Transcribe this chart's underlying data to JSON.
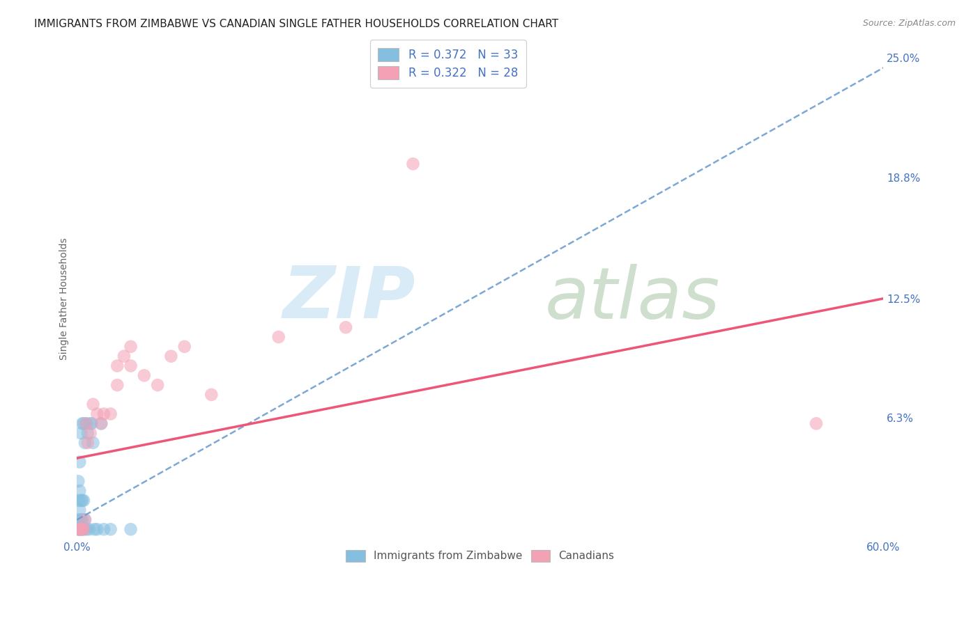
{
  "title": "IMMIGRANTS FROM ZIMBABWE VS CANADIAN SINGLE FATHER HOUSEHOLDS CORRELATION CHART",
  "source": "Source: ZipAtlas.com",
  "ylabel_label": "Single Father Households",
  "xlim": [
    0.0,
    0.6
  ],
  "ylim": [
    0.0,
    0.25
  ],
  "xtick_vals": [
    0.0,
    0.12,
    0.24,
    0.36,
    0.48,
    0.6
  ],
  "xticklabels": [
    "0.0%",
    "",
    "",
    "",
    "",
    "60.0%"
  ],
  "ytick_vals": [
    0.0,
    0.063,
    0.125,
    0.188,
    0.25
  ],
  "yticklabels_right": [
    "",
    "6.3%",
    "12.5%",
    "18.8%",
    "25.0%"
  ],
  "legend_top_labels": [
    "R = 0.372   N = 33",
    "R = 0.322   N = 28"
  ],
  "legend_bottom_labels": [
    "Immigrants from Zimbabwe",
    "Canadians"
  ],
  "blue_scatter_color": "#85bfe0",
  "pink_scatter_color": "#f4a0b5",
  "blue_line_color": "#6699cc",
  "pink_line_color": "#ee5577",
  "right_tick_color": "#4472c4",
  "bottom_tick_color": "#4472c4",
  "bg_color": "#ffffff",
  "grid_color": "#d0d0d0",
  "blue_x": [
    0.001,
    0.001,
    0.001,
    0.001,
    0.002,
    0.002,
    0.002,
    0.002,
    0.003,
    0.003,
    0.003,
    0.003,
    0.004,
    0.004,
    0.004,
    0.005,
    0.005,
    0.005,
    0.006,
    0.006,
    0.007,
    0.007,
    0.008,
    0.009,
    0.01,
    0.011,
    0.012,
    0.013,
    0.015,
    0.018,
    0.02,
    0.025,
    0.04
  ],
  "blue_y": [
    0.005,
    0.01,
    0.02,
    0.03,
    0.005,
    0.015,
    0.025,
    0.04,
    0.005,
    0.01,
    0.02,
    0.055,
    0.01,
    0.02,
    0.06,
    0.005,
    0.02,
    0.06,
    0.01,
    0.05,
    0.005,
    0.06,
    0.055,
    0.005,
    0.06,
    0.06,
    0.05,
    0.005,
    0.005,
    0.06,
    0.005,
    0.005,
    0.005
  ],
  "pink_x": [
    0.001,
    0.002,
    0.003,
    0.004,
    0.005,
    0.006,
    0.007,
    0.008,
    0.01,
    0.012,
    0.015,
    0.018,
    0.02,
    0.025,
    0.03,
    0.03,
    0.035,
    0.04,
    0.04,
    0.05,
    0.06,
    0.07,
    0.08,
    0.1,
    0.15,
    0.2,
    0.25,
    0.55
  ],
  "pink_y": [
    0.005,
    0.005,
    0.005,
    0.005,
    0.005,
    0.01,
    0.06,
    0.05,
    0.055,
    0.07,
    0.065,
    0.06,
    0.065,
    0.065,
    0.08,
    0.09,
    0.095,
    0.09,
    0.1,
    0.085,
    0.08,
    0.095,
    0.1,
    0.075,
    0.105,
    0.11,
    0.195,
    0.06
  ],
  "blue_trend_x0": 0.0,
  "blue_trend_y0": 0.01,
  "blue_trend_x1": 0.6,
  "blue_trend_y1": 0.245,
  "pink_trend_x0": 0.0,
  "pink_trend_y0": 0.042,
  "pink_trend_x1": 0.6,
  "pink_trend_y1": 0.125,
  "title_fontsize": 11,
  "axis_label_fontsize": 10,
  "tick_fontsize": 11
}
